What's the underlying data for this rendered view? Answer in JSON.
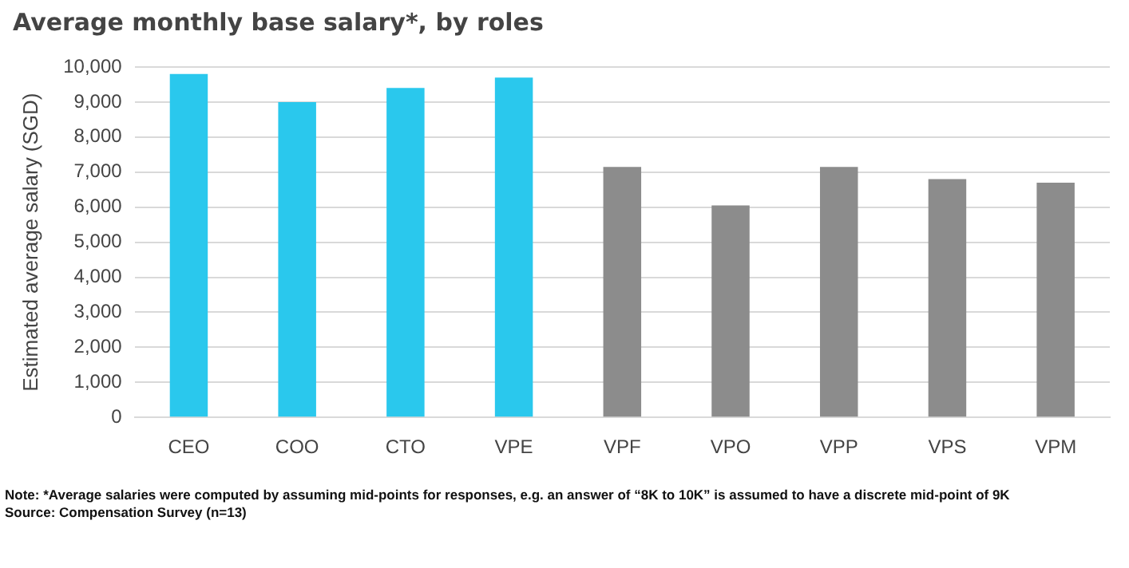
{
  "chart_data": {
    "type": "bar",
    "title": "Average monthly base salary*, by roles",
    "ylabel": "Estimated average salary (SGD)",
    "categories": [
      "CEO",
      "COO",
      "CTO",
      "VPE",
      "VPF",
      "VPO",
      "VPP",
      "VPS",
      "VPM"
    ],
    "values": [
      9800,
      9000,
      9400,
      9700,
      7150,
      6050,
      7150,
      6800,
      6700
    ],
    "colors": [
      "#2ac8ed",
      "#2ac8ed",
      "#2ac8ed",
      "#2ac8ed",
      "#8c8c8c",
      "#8c8c8c",
      "#8c8c8c",
      "#8c8c8c",
      "#8c8c8c"
    ],
    "ylim": [
      0,
      10000
    ],
    "yticks": [
      0,
      {
        "value": 1000,
        "label": "1,000"
      },
      {
        "value": 2000,
        "label": "2,000"
      },
      {
        "value": 3000,
        "label": "3,000"
      },
      {
        "value": 4000,
        "label": "4,000"
      },
      {
        "value": 5000,
        "label": "5,000"
      },
      {
        "value": 6000,
        "label": "6,000"
      },
      {
        "value": 7000,
        "label": "7,000"
      },
      {
        "value": 8000,
        "label": "8,000"
      },
      {
        "value": 9000,
        "label": "9,000"
      },
      {
        "value": 10000,
        "label": "10,000"
      }
    ],
    "grid": "y",
    "annotations": [
      "Note: *Average salaries were computed by assuming mid-points for responses, e.g. an answer of “8K to 10K” is assumed to have a discrete mid-point of 9K",
      "Source: Compensation Survey (n=13)"
    ]
  }
}
